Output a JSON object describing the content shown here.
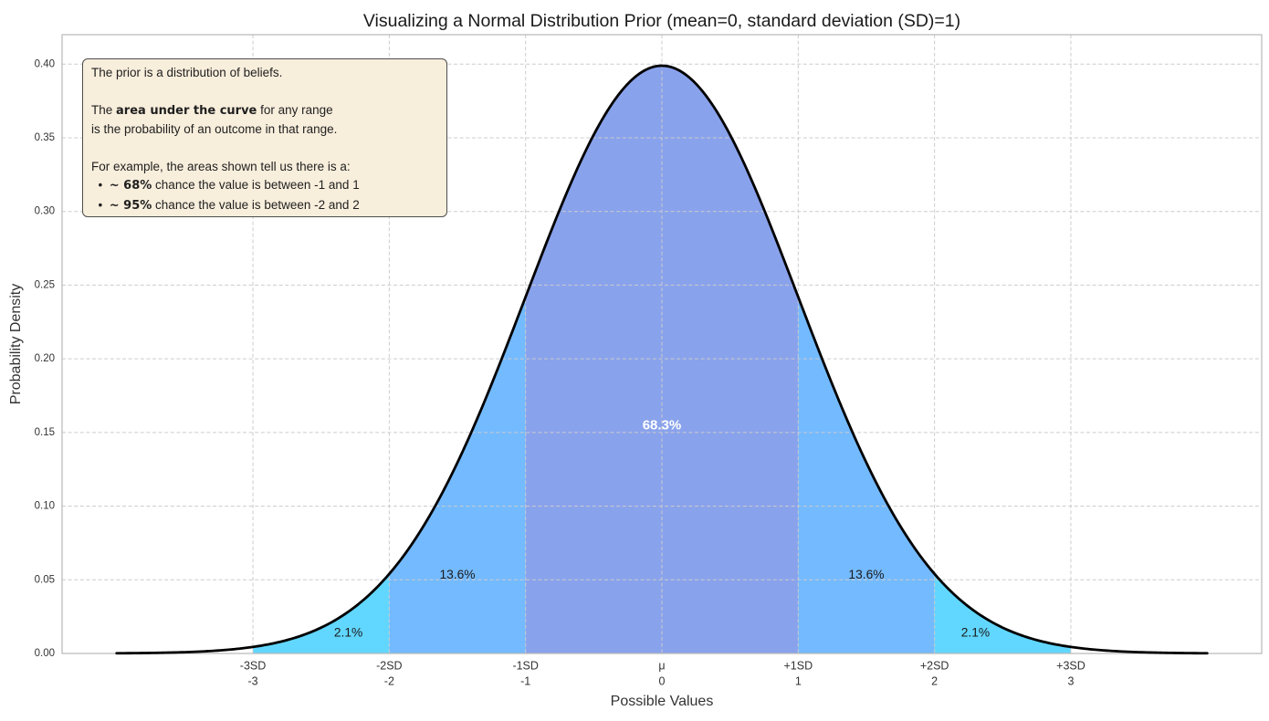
{
  "title": "Visualizing a Normal Distribution Prior (mean=0, standard deviation (SD)=1)",
  "chart_data": {
    "type": "area",
    "title": "Visualizing a Normal Distribution Prior (mean=0, standard deviation (SD)=1)",
    "xlabel": "Possible Values",
    "ylabel": "Probability Density",
    "distribution": {
      "name": "normal",
      "mean": 0,
      "sd": 1,
      "peak_density": 0.3989
    },
    "curve": {
      "x_min": -4,
      "x_max": 4,
      "color": "#000000",
      "line_width": 2.8
    },
    "xlim": [
      -4.4,
      4.4
    ],
    "ylim": [
      0,
      0.42
    ],
    "grid": {
      "style": "dashed",
      "color": "#cccccc"
    },
    "spine_color": "#b8b8b8",
    "yticks": [
      {
        "value": 0.0,
        "label": "0.00"
      },
      {
        "value": 0.05,
        "label": "0.05"
      },
      {
        "value": 0.1,
        "label": "0.10"
      },
      {
        "value": 0.15,
        "label": "0.15"
      },
      {
        "value": 0.2,
        "label": "0.20"
      },
      {
        "value": 0.25,
        "label": "0.25"
      },
      {
        "value": 0.3,
        "label": "0.30"
      },
      {
        "value": 0.35,
        "label": "0.35"
      },
      {
        "value": 0.4,
        "label": "0.40"
      }
    ],
    "xticks": [
      {
        "value": -3,
        "sd_label": "-3SD",
        "num_label": "-3"
      },
      {
        "value": -2,
        "sd_label": "-2SD",
        "num_label": "-2"
      },
      {
        "value": -1,
        "sd_label": "-1SD",
        "num_label": "-1"
      },
      {
        "value": 0,
        "sd_label": "μ",
        "num_label": "0"
      },
      {
        "value": 1,
        "sd_label": "+1SD",
        "num_label": "1"
      },
      {
        "value": 2,
        "sd_label": "+2SD",
        "num_label": "2"
      },
      {
        "value": 3,
        "sd_label": "+3SD",
        "num_label": "3"
      }
    ],
    "regions": [
      {
        "from": -3,
        "to": -2,
        "fill": "#00BFFF",
        "opacity": 0.62,
        "label": "2.1%",
        "label_x": -2.3,
        "label_y": 0.0143,
        "label_color": "#1a1a1a",
        "label_bold": false
      },
      {
        "from": -2,
        "to": -1,
        "fill": "#1E90FF",
        "opacity": 0.62,
        "label": "13.6%",
        "label_x": -1.5,
        "label_y": 0.0535,
        "label_color": "#1a1a1a",
        "label_bold": false
      },
      {
        "from": -1,
        "to": 1,
        "fill": "#4169E1",
        "opacity": 0.62,
        "label": "68.3%",
        "label_x": 0,
        "label_y": 0.155,
        "label_color": "#ffffff",
        "label_bold": true
      },
      {
        "from": 1,
        "to": 2,
        "fill": "#1E90FF",
        "opacity": 0.62,
        "label": "13.6%",
        "label_x": 1.5,
        "label_y": 0.0535,
        "label_color": "#1a1a1a",
        "label_bold": false
      },
      {
        "from": 2,
        "to": 3,
        "fill": "#00BFFF",
        "opacity": 0.62,
        "label": "2.1%",
        "label_x": 2.3,
        "label_y": 0.0143,
        "label_color": "#1a1a1a",
        "label_bold": false
      }
    ]
  },
  "annotation": {
    "lines": [
      [
        {
          "text": "The prior is a distribution of beliefs.",
          "bold": false
        }
      ],
      [],
      [
        {
          "text": "The ",
          "bold": false
        },
        {
          "text": "area under the curve",
          "bold": true
        },
        {
          "text": " for any range",
          "bold": false
        }
      ],
      [
        {
          "text": "is the probability of an outcome in that range.",
          "bold": false
        }
      ],
      [],
      [
        {
          "text": "For example, the areas shown tell us there is a:",
          "bold": false
        }
      ],
      [
        {
          "text": "  •  ",
          "bold": false
        },
        {
          "text": "~ 68%",
          "bold": true
        },
        {
          "text": " chance the value is between -1 and 1",
          "bold": false
        }
      ],
      [
        {
          "text": "  •  ",
          "bold": false
        },
        {
          "text": "~ 95%",
          "bold": true
        },
        {
          "text": " chance the value is between -2 and 2",
          "bold": false
        }
      ]
    ]
  }
}
